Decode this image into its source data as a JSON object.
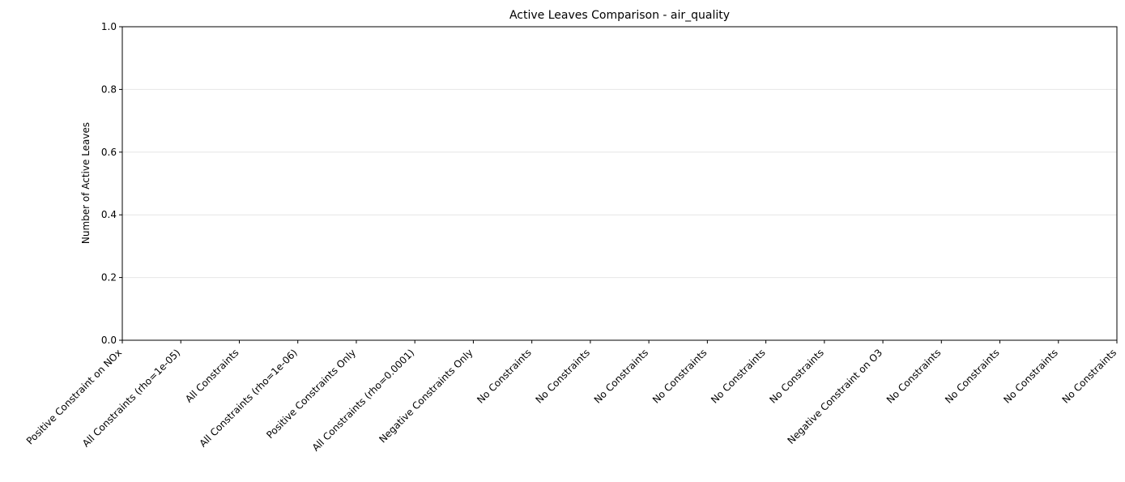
{
  "chart_data": {
    "type": "bar",
    "title": "Active Leaves Comparison - air_quality",
    "xlabel": "",
    "ylabel": "Number of Active Leaves",
    "ylim": [
      0,
      1.0
    ],
    "yticks": [
      "0.0",
      "0.2",
      "0.4",
      "0.6",
      "0.8",
      "1.0"
    ],
    "ytick_values": [
      0,
      0.2,
      0.4,
      0.6,
      0.8,
      1.0
    ],
    "grid": "y",
    "categories": [
      "Positive Constraint on NOx",
      "All Constraints (rho=1e-05)",
      "All Constraints",
      "All Constraints (rho=1e-06)",
      "Positive Constraints Only",
      "All Constraints (rho=0.0001)",
      "Negative Constraints Only",
      "No Constraints",
      "No Constraints",
      "No Constraints",
      "No Constraints",
      "No Constraints",
      "No Constraints",
      "Negative Constraint on O3",
      "No Constraints",
      "No Constraints",
      "No Constraints",
      "No Constraints"
    ],
    "values": [
      0,
      0,
      0,
      0,
      0,
      0,
      0,
      0,
      0,
      0,
      0,
      0,
      0,
      0,
      0,
      0,
      0,
      0
    ]
  }
}
